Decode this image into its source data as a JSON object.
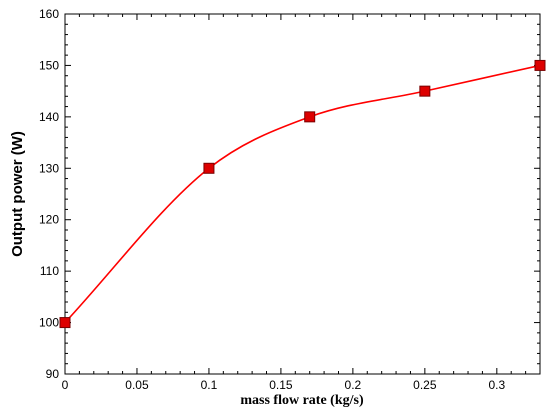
{
  "chart_data": {
    "type": "line",
    "title": "",
    "xlabel": "mass flow rate (kg/s)",
    "ylabel": "Output power (W)",
    "xlim": [
      0,
      0.33
    ],
    "ylim": [
      90,
      160
    ],
    "xticks": [
      0,
      0.05,
      0.1,
      0.15,
      0.2,
      0.25,
      0.3
    ],
    "xtick_labels": [
      "0",
      "0.05",
      "0.1",
      "0.15",
      "0.2",
      "0.25",
      "0.3"
    ],
    "yticks": [
      90,
      100,
      110,
      120,
      130,
      140,
      150,
      160
    ],
    "ytick_labels": [
      "90",
      "100",
      "110",
      "120",
      "130",
      "140",
      "150",
      "160"
    ],
    "grid": false,
    "legend": "none",
    "series": [
      {
        "x": [
          0,
          0.1,
          0.17,
          0.25,
          0.33
        ],
        "y": [
          100,
          130,
          140,
          145,
          150
        ],
        "color": "#ff0000",
        "marker": "square",
        "marker_color": "#dd0000",
        "line": "smooth"
      }
    ]
  }
}
